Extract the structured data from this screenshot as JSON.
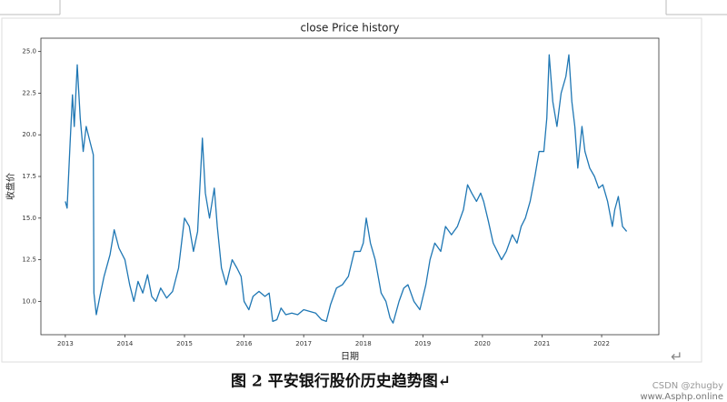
{
  "chart_data": {
    "type": "line",
    "title": "close Price history",
    "xlabel": "日期",
    "ylabel": "收盘价",
    "color": "#1f77b4",
    "x": [
      2013.0,
      2013.03,
      2013.08,
      2013.12,
      2013.15,
      2013.2,
      2013.25,
      2013.3,
      2013.35,
      2013.42,
      2013.47,
      2013.48,
      2013.52,
      2013.58,
      2013.65,
      2013.75,
      2013.82,
      2013.9,
      2014.0,
      2014.08,
      2014.15,
      2014.22,
      2014.3,
      2014.38,
      2014.45,
      2014.52,
      2014.6,
      2014.7,
      2014.8,
      2014.9,
      2015.0,
      2015.08,
      2015.15,
      2015.22,
      2015.3,
      2015.35,
      2015.42,
      2015.5,
      2015.55,
      2015.62,
      2015.7,
      2015.8,
      2015.88,
      2015.95,
      2016.0,
      2016.08,
      2016.15,
      2016.25,
      2016.35,
      2016.42,
      2016.48,
      2016.55,
      2016.62,
      2016.7,
      2016.8,
      2016.9,
      2017.0,
      2017.1,
      2017.2,
      2017.3,
      2017.38,
      2017.45,
      2017.55,
      2017.65,
      2017.75,
      2017.85,
      2017.95,
      2018.0,
      2018.05,
      2018.12,
      2018.2,
      2018.3,
      2018.38,
      2018.45,
      2018.5,
      2018.6,
      2018.68,
      2018.75,
      2018.85,
      2018.95,
      2019.05,
      2019.12,
      2019.2,
      2019.3,
      2019.38,
      2019.48,
      2019.58,
      2019.68,
      2019.75,
      2019.82,
      2019.9,
      2019.97,
      2020.02,
      2020.1,
      2020.18,
      2020.25,
      2020.32,
      2020.4,
      2020.5,
      2020.58,
      2020.65,
      2020.72,
      2020.8,
      2020.88,
      2020.95,
      2021.03,
      2021.08,
      2021.12,
      2021.18,
      2021.25,
      2021.32,
      2021.4,
      2021.45,
      2021.5,
      2021.55,
      2021.6,
      2021.67,
      2021.72,
      2021.8,
      2021.88,
      2021.95,
      2022.02,
      2022.1,
      2022.18,
      2022.22,
      2022.28,
      2022.35,
      2022.42
    ],
    "values": [
      16.0,
      15.6,
      19.5,
      22.4,
      20.5,
      24.2,
      21.0,
      19.0,
      20.5,
      19.5,
      18.8,
      10.5,
      9.2,
      10.3,
      11.5,
      12.8,
      14.3,
      13.2,
      12.5,
      11.0,
      10.0,
      11.2,
      10.5,
      11.6,
      10.3,
      10.0,
      10.8,
      10.2,
      10.6,
      12.0,
      15.0,
      14.5,
      13.0,
      14.2,
      19.8,
      16.5,
      15.0,
      16.8,
      14.5,
      12.0,
      11.0,
      12.5,
      12.0,
      11.5,
      10.0,
      9.5,
      10.3,
      10.6,
      10.3,
      10.5,
      8.8,
      8.9,
      9.6,
      9.2,
      9.3,
      9.2,
      9.5,
      9.4,
      9.3,
      8.9,
      8.8,
      9.8,
      10.8,
      11.0,
      11.5,
      13.0,
      13.0,
      13.5,
      15.0,
      13.5,
      12.5,
      10.5,
      10.0,
      9.0,
      8.7,
      10.0,
      10.8,
      11.0,
      10.0,
      9.5,
      11.0,
      12.5,
      13.5,
      13.0,
      14.5,
      14.0,
      14.5,
      15.5,
      17.0,
      16.5,
      16.0,
      16.5,
      16.0,
      14.8,
      13.5,
      13.0,
      12.5,
      13.0,
      14.0,
      13.5,
      14.5,
      15.0,
      16.0,
      17.5,
      19.0,
      19.0,
      21.0,
      24.8,
      22.0,
      20.5,
      22.5,
      23.5,
      24.8,
      22.0,
      20.5,
      18.0,
      20.5,
      19.0,
      18.0,
      17.5,
      16.8,
      17.0,
      16.0,
      14.5,
      15.5,
      16.3,
      14.5,
      14.2
    ],
    "xlim": [
      2012.59,
      2022.96
    ],
    "xticks": [
      2013,
      2014,
      2015,
      2016,
      2017,
      2018,
      2019,
      2020,
      2021,
      2022
    ],
    "ylim": [
      8.0,
      25.8
    ],
    "yticks": [
      {
        "value": 10,
        "label": "10.0"
      },
      {
        "value": 12.5,
        "label": "12.5"
      },
      {
        "value": 15,
        "label": "15.0"
      },
      {
        "value": 17.5,
        "label": "17.5"
      },
      {
        "value": 20,
        "label": "20.0"
      },
      {
        "value": 22.5,
        "label": "22.5"
      },
      {
        "value": 25,
        "label": "25.0"
      }
    ]
  },
  "caption": "图 2  平安银行股价历史趋势图↵",
  "return_mark": "↵",
  "watermark": [
    "CSDN @zhugby",
    "www.Asphp.online"
  ]
}
